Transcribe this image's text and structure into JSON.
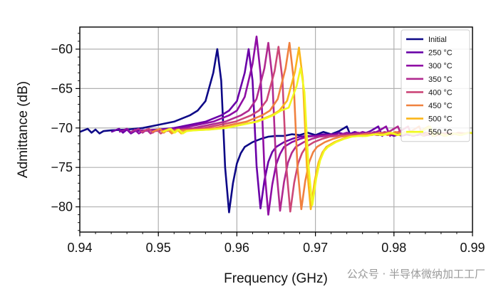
{
  "chart_data": {
    "type": "line",
    "xlabel": "Frequency (GHz)",
    "ylabel": "Admittance (dB)",
    "xlim": [
      0.94,
      0.99
    ],
    "ylim": [
      -83.2,
      -57.2
    ],
    "xticks": [
      0.94,
      0.95,
      0.96,
      0.97,
      0.98,
      0.99
    ],
    "xtick_labels": [
      "0.94",
      "0.95",
      "0.96",
      "0.97",
      "0.98",
      "0.99"
    ],
    "yticks": [
      -80,
      -75,
      -70,
      -65,
      -60
    ],
    "ytick_labels": [
      "−80",
      "−75",
      "−70",
      "−65",
      "−60"
    ],
    "grid": true,
    "legend_position": "top-right",
    "series": [
      {
        "name": "Initial",
        "color": "#0d0887",
        "shift": 0.0
      },
      {
        "name": "250 °C",
        "color": "#6a00a8",
        "shift": 0.004
      },
      {
        "name": "300 °C",
        "color": "#8f0da4",
        "shift": 0.005
      },
      {
        "name": "350 °C",
        "color": "#b12a90",
        "shift": 0.0065
      },
      {
        "name": "400 °C",
        "color": "#cc4778",
        "shift": 0.0078
      },
      {
        "name": "450 °C",
        "color": "#f0813f",
        "shift": 0.0092
      },
      {
        "name": "500 °C",
        "color": "#fbb61a",
        "shift": 0.0104
      },
      {
        "name": "550 °C",
        "color": "#f0f921",
        "shift": 0.0106
      }
    ],
    "base_curve": {
      "x": [
        0.94,
        0.941,
        0.9415,
        0.942,
        0.9425,
        0.943,
        0.944,
        0.946,
        0.948,
        0.95,
        0.952,
        0.954,
        0.955,
        0.956,
        0.957,
        0.9575,
        0.958,
        0.9585,
        0.959,
        0.9595,
        0.96,
        0.9605,
        0.961,
        0.962,
        0.963,
        0.964,
        0.965,
        0.966,
        0.967,
        0.968,
        0.969,
        0.97,
        0.971,
        0.972,
        0.973,
        0.974,
        0.9745,
        0.975,
        0.976,
        0.977,
        0.978,
        0.979,
        0.98
      ],
      "y": [
        -70.5,
        -70.1,
        -70.6,
        -70.2,
        -70.7,
        -70.4,
        -70.3,
        -70.2,
        -70.0,
        -69.6,
        -69.2,
        -68.4,
        -67.8,
        -66.6,
        -63.0,
        -60.0,
        -64.0,
        -75.0,
        -80.7,
        -77.0,
        -74.5,
        -73.2,
        -72.4,
        -71.8,
        -71.4,
        -71.1,
        -71.0,
        -71.0,
        -70.8,
        -70.9,
        -70.6,
        -70.9,
        -70.5,
        -70.8,
        -70.4,
        -69.8,
        -71.0,
        -70.6,
        -71.0,
        -70.7,
        -70.9,
        -70.6,
        -70.7
      ]
    },
    "scaling": [
      {
        "peak": -60.0,
        "dip": -80.7
      },
      {
        "peak": -60.0,
        "dip": -80.2
      },
      {
        "peak": -58.4,
        "dip": -81.0
      },
      {
        "peak": -59.2,
        "dip": -80.5
      },
      {
        "peak": -59.7,
        "dip": -80.6
      },
      {
        "peak": -59.2,
        "dip": -80.3
      },
      {
        "peak": -59.8,
        "dip": -80.3
      },
      {
        "peak": -62.4,
        "dip": -79.8
      }
    ]
  },
  "watermark_text": "公众号 · 半导体微纳加工工厂"
}
